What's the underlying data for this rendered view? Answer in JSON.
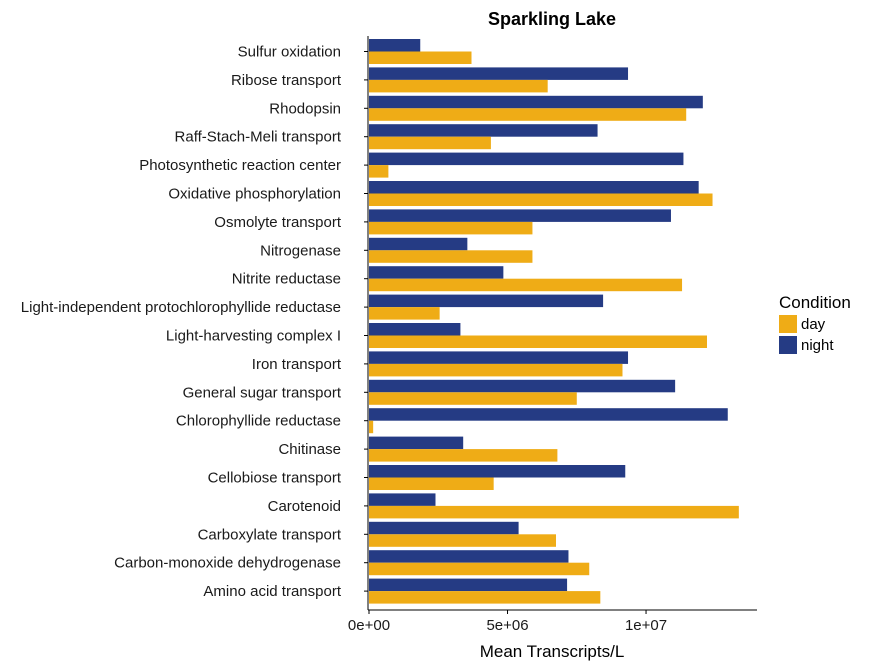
{
  "chart_data": {
    "type": "bar",
    "orientation": "horizontal",
    "title": "Sparkling Lake",
    "xlabel": "Mean Transcripts/L",
    "ylabel": "",
    "xlim": [
      0,
      14000000
    ],
    "x_ticks": [
      {
        "value": 0,
        "label": "0e+00"
      },
      {
        "value": 5000000,
        "label": "5e+06"
      },
      {
        "value": 10000000,
        "label": "1e+07"
      }
    ],
    "grid": false,
    "legend_position": "right",
    "legend_title": "Condition",
    "categories": [
      "Sulfur oxidation",
      "Ribose transport",
      "Rhodopsin",
      "Raff-Stach-Meli transport",
      "Photosynthetic reaction center",
      "Oxidative phosphorylation",
      "Osmolyte transport",
      "Nitrogenase",
      "Nitrite reductase",
      "Light-independent protochlorophyllide reductase",
      "Light-harvesting complex I",
      "Iron transport",
      "General sugar transport",
      "Chlorophyllide reductase",
      "Chitinase",
      "Cellobiose transport",
      "Carotenoid",
      "Carboxylate transport",
      "Carbon-monoxide dehydrogenase",
      "Amino acid transport"
    ],
    "series": [
      {
        "name": "night",
        "color": "#253b84",
        "values": [
          1850000,
          9350000,
          12050000,
          8250000,
          11350000,
          11900000,
          10900000,
          3550000,
          4850000,
          8450000,
          3300000,
          9350000,
          11050000,
          12950000,
          3400000,
          9250000,
          2400000,
          5400000,
          7200000,
          7150000
        ]
      },
      {
        "name": "day",
        "color": "#efac16",
        "values": [
          3700000,
          6450000,
          11450000,
          4400000,
          700000,
          12400000,
          5900000,
          5900000,
          11300000,
          2550000,
          12200000,
          9150000,
          7500000,
          150000,
          6800000,
          4500000,
          13350000,
          6750000,
          7950000,
          8350000
        ]
      }
    ],
    "legend": [
      {
        "label": "day",
        "color": "#efac16"
      },
      {
        "label": "night",
        "color": "#253b84"
      }
    ]
  }
}
